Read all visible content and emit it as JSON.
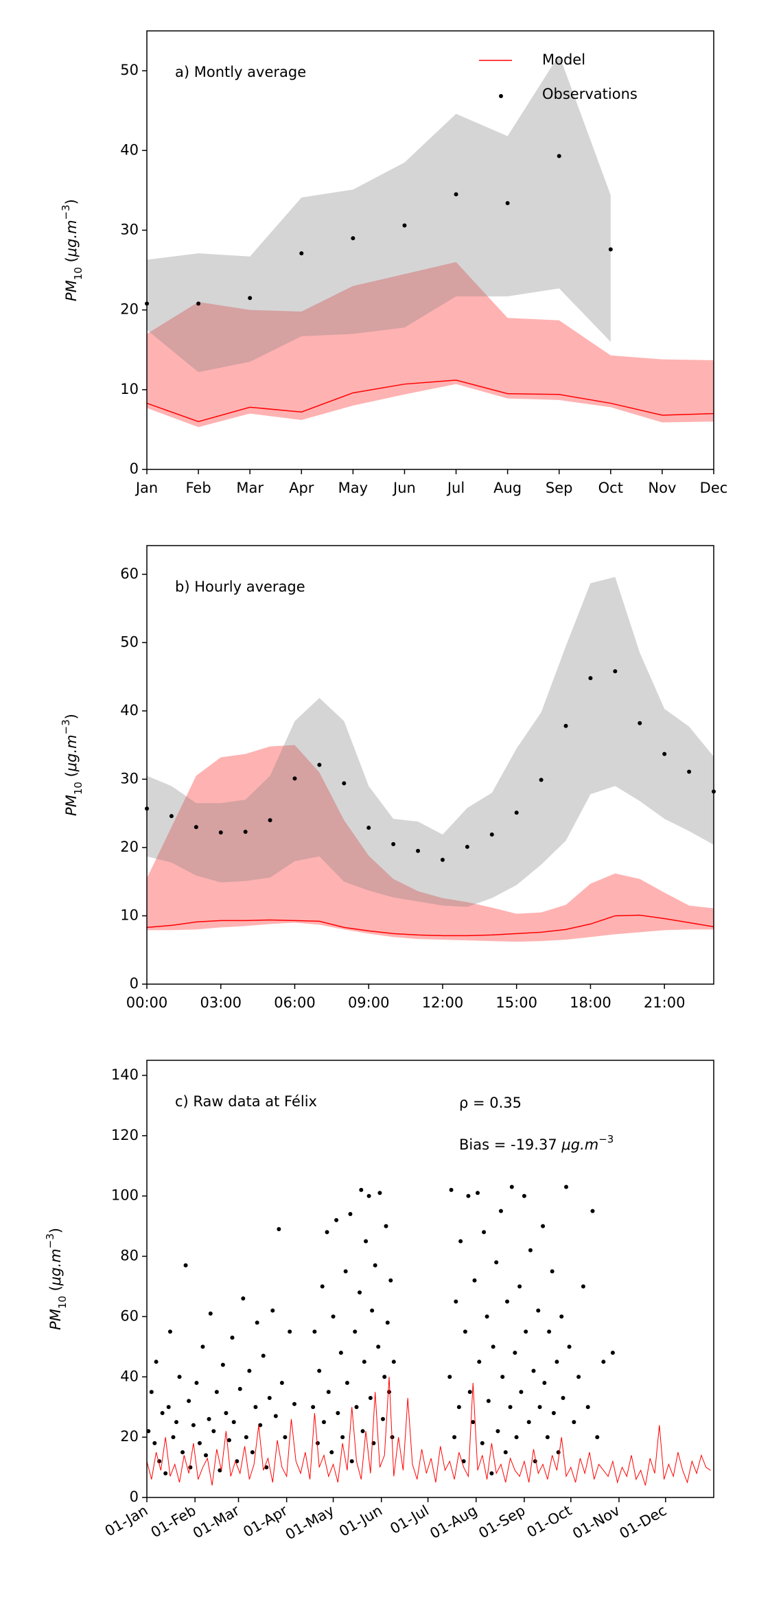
{
  "chart_data": [
    {
      "type": "line",
      "annotation": "a) Montly average",
      "ylabel": [
        "PM",
        "10",
        " (",
        "μg.m",
        "−3",
        ")"
      ],
      "categories": [
        "Jan",
        "Feb",
        "Mar",
        "Apr",
        "May",
        "Jun",
        "Jul",
        "Aug",
        "Sep",
        "Oct",
        "Nov",
        "Dec"
      ],
      "ylim": [
        0,
        55
      ],
      "yticks": [
        0,
        10,
        20,
        30,
        40,
        50
      ],
      "legend": "upper right",
      "series": [
        {
          "name": "Model",
          "style": "line",
          "color": "#ff0000",
          "band_color": "#ff0000",
          "band_alpha": 0.3,
          "values": [
            8.3,
            6.0,
            7.8,
            7.2,
            9.6,
            10.7,
            11.2,
            9.5,
            9.4,
            8.3,
            6.8,
            7.0
          ],
          "lower": [
            7.7,
            5.3,
            7.0,
            6.2,
            8.0,
            9.4,
            10.7,
            8.9,
            8.7,
            7.8,
            5.9,
            6.0
          ],
          "upper": [
            17.0,
            21.0,
            20.0,
            19.8,
            23.0,
            24.5,
            26.0,
            19.0,
            18.7,
            14.3,
            13.8,
            13.7
          ]
        },
        {
          "name": "Observations",
          "style": "scatter",
          "color": "#000000",
          "band_color": "#808080",
          "band_alpha": 0.33,
          "values": [
            20.8,
            20.8,
            21.5,
            27.1,
            29.0,
            30.6,
            34.5,
            33.4,
            39.3,
            27.6,
            null,
            null
          ],
          "lower": [
            17.5,
            12.2,
            13.5,
            16.7,
            17.0,
            17.8,
            21.7,
            21.7,
            22.7,
            16.0,
            null,
            null
          ],
          "upper": [
            26.3,
            27.1,
            26.7,
            34.1,
            35.1,
            38.5,
            44.6,
            41.8,
            52.0,
            34.4,
            null,
            null
          ]
        }
      ]
    },
    {
      "type": "line",
      "annotation": "b) Hourly average",
      "ylabel": [
        "PM",
        "10",
        " (",
        "μg.m",
        "−3",
        ")"
      ],
      "x": [
        0,
        1,
        2,
        3,
        4,
        5,
        6,
        7,
        8,
        9,
        10,
        11,
        12,
        13,
        14,
        15,
        16,
        17,
        18,
        19,
        20,
        21,
        22,
        23
      ],
      "xlim": [
        0,
        23
      ],
      "xticks": [
        {
          "value": 0,
          "label": "00:00"
        },
        {
          "value": 3,
          "label": "03:00"
        },
        {
          "value": 6,
          "label": "06:00"
        },
        {
          "value": 9,
          "label": "09:00"
        },
        {
          "value": 12,
          "label": "12:00"
        },
        {
          "value": 15,
          "label": "15:00"
        },
        {
          "value": 18,
          "label": "18:00"
        },
        {
          "value": 21,
          "label": "21:00"
        }
      ],
      "ylim": [
        0,
        64.2
      ],
      "yticks": [
        0,
        10,
        20,
        30,
        40,
        50,
        60
      ],
      "series": [
        {
          "name": "Model",
          "style": "line",
          "color": "#ff0000",
          "band_color": "#ff0000",
          "band_alpha": 0.3,
          "values": [
            8.3,
            8.6,
            9.1,
            9.3,
            9.3,
            9.4,
            9.3,
            9.2,
            8.3,
            7.8,
            7.4,
            7.2,
            7.1,
            7.1,
            7.2,
            7.4,
            7.6,
            8.0,
            8.8,
            10.0,
            10.1,
            9.6,
            9.0,
            8.4
          ],
          "lower": [
            7.9,
            7.9,
            8.0,
            8.3,
            8.5,
            8.8,
            9.0,
            8.7,
            8.0,
            7.4,
            6.9,
            6.6,
            6.5,
            6.4,
            6.3,
            6.2,
            6.3,
            6.5,
            6.9,
            7.3,
            7.6,
            7.9,
            8.0,
            8.0
          ],
          "upper": [
            15.5,
            23.0,
            30.5,
            33.2,
            33.7,
            34.8,
            35.0,
            31.0,
            24.0,
            18.8,
            15.4,
            13.6,
            12.6,
            12.0,
            11.2,
            10.3,
            10.5,
            11.6,
            14.7,
            16.2,
            15.4,
            13.4,
            11.5,
            11.1
          ]
        },
        {
          "name": "Observations",
          "style": "scatter",
          "color": "#000000",
          "band_color": "#808080",
          "band_alpha": 0.33,
          "values": [
            25.7,
            24.6,
            23.0,
            22.2,
            22.3,
            24.0,
            30.1,
            32.1,
            29.4,
            22.9,
            20.5,
            19.5,
            18.2,
            20.1,
            21.9,
            25.1,
            29.9,
            37.8,
            44.8,
            45.8,
            38.2,
            33.7,
            31.1,
            28.2
          ],
          "lower": [
            18.7,
            17.8,
            15.9,
            14.9,
            15.1,
            15.6,
            18.0,
            18.7,
            15.0,
            13.7,
            12.7,
            12.1,
            11.5,
            11.3,
            12.6,
            14.5,
            17.5,
            21.0,
            27.8,
            29.0,
            26.8,
            24.2,
            22.4,
            20.4
          ],
          "upper": [
            30.5,
            29.0,
            26.5,
            26.5,
            27.0,
            30.5,
            38.5,
            41.9,
            38.5,
            29.0,
            24.2,
            23.8,
            21.9,
            25.8,
            28.0,
            34.5,
            39.8,
            49.5,
            58.7,
            59.6,
            48.5,
            40.3,
            37.7,
            33.3
          ]
        }
      ]
    },
    {
      "type": "line",
      "annotation": "c) Raw data at Félix",
      "stats": "ρ = 0.35",
      "bias": [
        "Bias = -19.37 ",
        "μg.m",
        "−3"
      ],
      "ylabel": [
        "PM",
        "10",
        " (",
        "μg.m",
        "−3",
        ")"
      ],
      "xlim": [
        0,
        365
      ],
      "xticks": [
        {
          "value": 0,
          "label": "01-Jan"
        },
        {
          "value": 31,
          "label": "01-Feb"
        },
        {
          "value": 59,
          "label": "01-Mar"
        },
        {
          "value": 90,
          "label": "01-Apr"
        },
        {
          "value": 120,
          "label": "01-May"
        },
        {
          "value": 151,
          "label": "01-Jun"
        },
        {
          "value": 181,
          "label": "01-Jul"
        },
        {
          "value": 212,
          "label": "01-Aug"
        },
        {
          "value": 243,
          "label": "01-Sep"
        },
        {
          "value": 273,
          "label": "01-Oct"
        },
        {
          "value": 304,
          "label": "01-Nov"
        },
        {
          "value": 334,
          "label": "01-Dec"
        }
      ],
      "ylim": [
        0,
        145
      ],
      "yticks": [
        0,
        20,
        40,
        60,
        80,
        100,
        120,
        140
      ],
      "series": [
        {
          "name": "Observations",
          "style": "scatter",
          "color": "#000000",
          "x": [
            1,
            3,
            5,
            6,
            8,
            10,
            12,
            14,
            15,
            17,
            19,
            21,
            23,
            25,
            27,
            28,
            30,
            32,
            34,
            36,
            38,
            40,
            41,
            43,
            45,
            47,
            49,
            51,
            53,
            55,
            56,
            58,
            60,
            62,
            64,
            66,
            68,
            70,
            71,
            73,
            75,
            77,
            79,
            81,
            83,
            85,
            87,
            89,
            92,
            95,
            107,
            108,
            110,
            111,
            113,
            114,
            116,
            117,
            119,
            120,
            122,
            123,
            125,
            126,
            128,
            129,
            131,
            132,
            134,
            135,
            137,
            138,
            139,
            140,
            141,
            143,
            144,
            145,
            146,
            147,
            149,
            150,
            152,
            153,
            154,
            155,
            156,
            157,
            158,
            159,
            195,
            196,
            198,
            199,
            201,
            202,
            204,
            205,
            207,
            208,
            210,
            211,
            213,
            214,
            216,
            217,
            219,
            220,
            222,
            223,
            225,
            226,
            228,
            229,
            231,
            232,
            234,
            235,
            237,
            238,
            240,
            241,
            243,
            244,
            246,
            247,
            249,
            250,
            252,
            253,
            255,
            256,
            258,
            259,
            261,
            262,
            264,
            265,
            267,
            268,
            270,
            272,
            275,
            278,
            281,
            284,
            287,
            290,
            294,
            300
          ],
          "values": [
            22,
            35,
            18,
            45,
            12,
            28,
            8,
            30,
            55,
            20,
            25,
            40,
            15,
            77,
            32,
            10,
            24,
            38,
            18,
            50,
            14,
            26,
            61,
            22,
            35,
            9,
            44,
            28,
            19,
            53,
            25,
            12,
            36,
            66,
            20,
            42,
            15,
            30,
            58,
            24,
            47,
            10,
            33,
            62,
            27,
            89,
            38,
            20,
            55,
            31,
            30,
            55,
            18,
            42,
            70,
            25,
            88,
            35,
            15,
            60,
            92,
            28,
            48,
            20,
            75,
            38,
            94,
            12,
            55,
            30,
            68,
            102,
            22,
            45,
            85,
            100,
            33,
            62,
            18,
            77,
            50,
            101,
            26,
            40,
            90,
            58,
            35,
            72,
            20,
            45,
            40,
            102,
            20,
            65,
            30,
            85,
            12,
            55,
            100,
            35,
            25,
            72,
            101,
            45,
            18,
            88,
            60,
            32,
            8,
            50,
            78,
            22,
            95,
            40,
            15,
            65,
            30,
            103,
            48,
            20,
            70,
            35,
            100,
            55,
            25,
            82,
            42,
            12,
            62,
            30,
            90,
            38,
            20,
            55,
            75,
            28,
            45,
            15,
            60,
            33,
            103,
            50,
            25,
            40,
            70,
            30,
            95,
            20,
            45,
            48
          ]
        },
        {
          "name": "Model",
          "style": "line",
          "color": "#ff0000",
          "x": [
            0,
            3,
            6,
            9,
            12,
            15,
            18,
            21,
            24,
            27,
            30,
            33,
            36,
            39,
            42,
            45,
            48,
            51,
            54,
            57,
            60,
            63,
            66,
            69,
            72,
            75,
            78,
            81,
            84,
            87,
            90,
            93,
            96,
            99,
            102,
            105,
            108,
            111,
            114,
            117,
            120,
            123,
            126,
            129,
            132,
            135,
            138,
            141,
            144,
            147,
            150,
            153,
            156,
            159,
            162,
            165,
            168,
            171,
            174,
            177,
            180,
            183,
            186,
            189,
            192,
            195,
            198,
            201,
            204,
            207,
            210,
            213,
            216,
            219,
            222,
            225,
            228,
            231,
            234,
            237,
            240,
            243,
            246,
            249,
            252,
            255,
            258,
            261,
            264,
            267,
            270,
            273,
            276,
            279,
            282,
            285,
            288,
            291,
            294,
            297,
            300,
            303,
            306,
            309,
            312,
            315,
            318,
            321,
            324,
            327,
            330,
            333,
            336,
            339,
            342,
            345,
            348,
            351,
            354,
            357,
            360,
            363
          ],
          "values": [
            12,
            6,
            15,
            9,
            20,
            7,
            11,
            5,
            14,
            8,
            18,
            6,
            10,
            13,
            4,
            16,
            9,
            22,
            7,
            12,
            8,
            17,
            6,
            11,
            24,
            9,
            13,
            5,
            19,
            10,
            7,
            26,
            12,
            8,
            15,
            6,
            28,
            10,
            14,
            7,
            11,
            5,
            18,
            9,
            30,
            12,
            6,
            22,
            8,
            35,
            10,
            14,
            40,
            7,
            20,
            9,
            33,
            11,
            6,
            16,
            8,
            13,
            5,
            17,
            9,
            12,
            6,
            15,
            10,
            7,
            38,
            9,
            14,
            6,
            18,
            8,
            11,
            5,
            13,
            9,
            7,
            12,
            5,
            16,
            8,
            11,
            6,
            14,
            9,
            20,
            7,
            10,
            5,
            13,
            8,
            15,
            6,
            11,
            9,
            7,
            12,
            5,
            10,
            7,
            14,
            6,
            9,
            4,
            13,
            8,
            24,
            6,
            11,
            7,
            15,
            9,
            5,
            12,
            8,
            14,
            10,
            9
          ]
        }
      ]
    }
  ]
}
